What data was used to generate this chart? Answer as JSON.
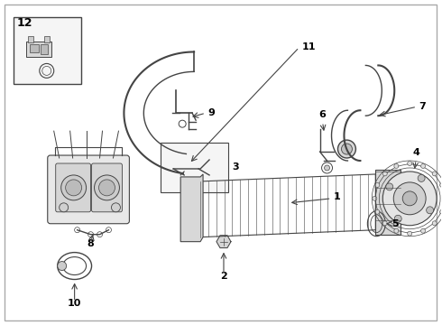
{
  "bg_color": "#ffffff",
  "border_color": "#cccccc",
  "line_color": "#444444",
  "text_color": "#000000",
  "fig_width": 4.9,
  "fig_height": 3.6,
  "dpi": 100
}
